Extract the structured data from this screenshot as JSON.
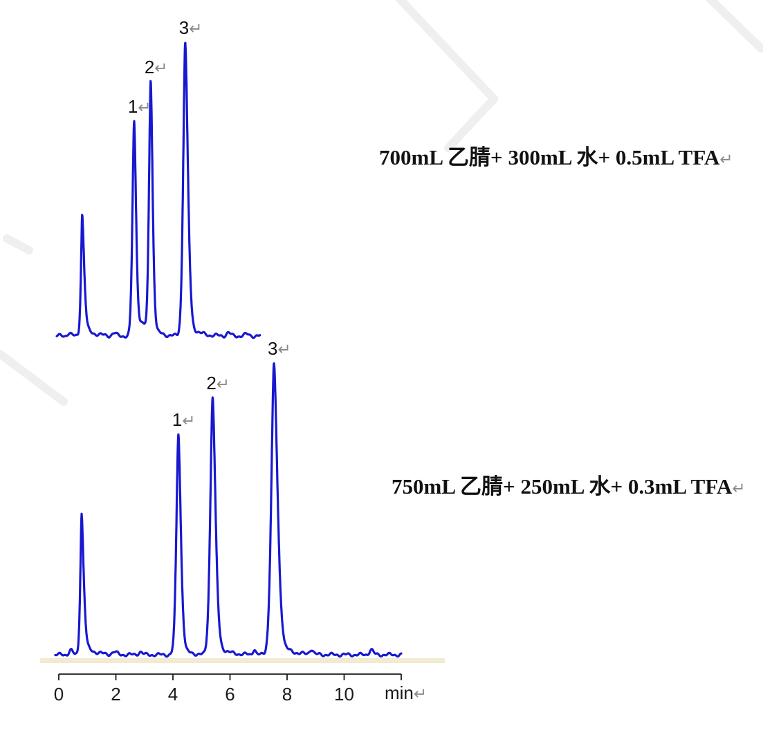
{
  "colors": {
    "trace_blue": "#1818d0",
    "return_mark_gray": "#8a8a8a",
    "axis_black": "#1a1a1a",
    "watermark_gray": "#efefef",
    "stripe_tan": "rgba(231,216,172,0.55)"
  },
  "marks": {
    "return": "↵"
  },
  "axis": {
    "tick_values": [
      "0",
      "2",
      "4",
      "6",
      "8",
      "10"
    ],
    "tick_step_min": 2,
    "t_start": 0,
    "t_end": 12,
    "unit_label": "min"
  },
  "chart_data": [
    {
      "type": "line",
      "title": "700mL 乙腈+ 300mL 水+ 0.5mL TFA",
      "xlabel": "min",
      "series_name": "UV trace (700mL ACN + 300mL H2O + 0.5mL TFA)",
      "x_range": [
        -0.07,
        7.05
      ],
      "y_unit": "relative response (max peak = 100)",
      "peaks": [
        {
          "label": "",
          "name": "solvent-front",
          "t": 0.82,
          "h": 41.4,
          "wl": 0.06,
          "wr": 0.095,
          "p": 1.6,
          "tail": 0.1,
          "tau": 0.28
        },
        {
          "label": "1",
          "name": "peak-1",
          "t": 2.64,
          "h": 73.2,
          "wl": 0.085,
          "wr": 0.095,
          "p": 1.7,
          "tail": 0.05,
          "tau": 0.22
        },
        {
          "label": "2",
          "name": "peak-2",
          "t": 3.22,
          "h": 86.6,
          "wl": 0.085,
          "wr": 0.095,
          "p": 1.7,
          "tail": 0.05,
          "tau": 0.22
        },
        {
          "label": "3",
          "name": "peak-3",
          "t": 4.43,
          "h": 100,
          "wl": 0.1,
          "wr": 0.13,
          "p": 1.7,
          "tail": 0.06,
          "tau": 0.3
        }
      ],
      "baseline_bumps": [
        [
          0.36,
          1.1,
          0.09
        ],
        [
          1.94,
          0.9,
          0.1
        ],
        [
          2.93,
          3.6,
          0.13
        ],
        [
          5.94,
          1.1,
          0.1
        ],
        [
          6.6,
          0.5,
          0.15
        ]
      ],
      "noise_amp": 0.45
    },
    {
      "type": "line",
      "title": "750mL 乙腈+ 250mL 水+ 0.3mL TFA",
      "xlabel": "min",
      "series_name": "UV trace (750mL ACN + 250mL H2O + 0.3mL TFA)",
      "x_range": [
        -0.12,
        12.0
      ],
      "y_unit": "relative response (max peak = 100)",
      "peaks": [
        {
          "label": "",
          "name": "solvent-front",
          "t": 0.8,
          "h": 48.3,
          "wl": 0.065,
          "wr": 0.1,
          "p": 1.6,
          "tail": 0.1,
          "tau": 0.3
        },
        {
          "label": "1",
          "name": "peak-1",
          "t": 4.19,
          "h": 75.6,
          "wl": 0.1,
          "wr": 0.12,
          "p": 1.7,
          "tail": 0.05,
          "tau": 0.25
        },
        {
          "label": "2",
          "name": "peak-2",
          "t": 5.39,
          "h": 88.2,
          "wl": 0.115,
          "wr": 0.14,
          "p": 1.7,
          "tail": 0.07,
          "tau": 0.3
        },
        {
          "label": "3",
          "name": "peak-3",
          "t": 7.54,
          "h": 100,
          "wl": 0.13,
          "wr": 0.17,
          "p": 1.7,
          "tail": 0.07,
          "tau": 0.35
        }
      ],
      "baseline_bumps": [
        [
          0.42,
          1.6,
          0.09
        ],
        [
          1.95,
          0.8,
          0.12
        ],
        [
          2.86,
          1.0,
          0.1
        ],
        [
          6.85,
          1.9,
          0.07
        ],
        [
          8.85,
          1.8,
          0.09
        ],
        [
          10.95,
          1.7,
          0.1
        ]
      ],
      "noise_amp": 0.4
    }
  ]
}
